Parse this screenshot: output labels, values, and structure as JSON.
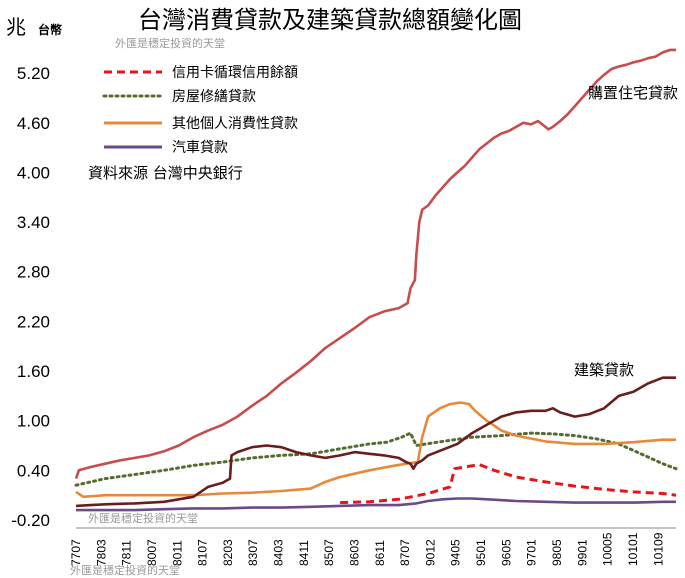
{
  "chart_data": {
    "type": "line",
    "title": "台灣消費貸款及建築貸款總額變化圖",
    "unit_big": "兆",
    "unit_small": "台幣",
    "watermark": "外匯是穩定投資的天堂",
    "source_note": "資料來源 台灣中央銀行",
    "ylim": [
      -0.2,
      5.6
    ],
    "yticks": [
      "5.20",
      "4.60",
      "4.00",
      "3.40",
      "2.80",
      "2.20",
      "1.60",
      "1.00",
      "0.40",
      "-0.20"
    ],
    "ytick_values": [
      5.2,
      4.6,
      4.0,
      3.4,
      2.8,
      2.2,
      1.6,
      1.0,
      0.4,
      -0.2
    ],
    "xlim": [
      0,
      409
    ],
    "xticks": [
      "7707",
      "7803",
      "7811",
      "8007",
      "8011",
      "8107",
      "8203",
      "8307",
      "8403",
      "8411",
      "8507",
      "8603",
      "8611",
      "8707",
      "9012",
      "9405",
      "9501",
      "9605",
      "9701",
      "9805",
      "9901",
      "10005",
      "10101",
      "10109"
    ],
    "annotations": [
      {
        "text": "購置住宅貸款",
        "series": 3
      },
      {
        "text": "建築貸款",
        "series": 4
      }
    ],
    "series": [
      {
        "name": "信用卡循環信用餘額",
        "color": "#e8141a",
        "style": "dashed",
        "points": [
          [
            180,
            0.01
          ],
          [
            200,
            0.02
          ],
          [
            220,
            0.05
          ],
          [
            240,
            0.12
          ],
          [
            255,
            0.2
          ],
          [
            258,
            0.42
          ],
          [
            265,
            0.44
          ],
          [
            275,
            0.47
          ],
          [
            285,
            0.4
          ],
          [
            300,
            0.32
          ],
          [
            320,
            0.26
          ],
          [
            340,
            0.21
          ],
          [
            360,
            0.17
          ],
          [
            380,
            0.14
          ],
          [
            400,
            0.12
          ],
          [
            409,
            0.1
          ]
        ]
      },
      {
        "name": "房屋修繕貸款",
        "color": "#556b2f",
        "style": "dotted",
        "points": [
          [
            0,
            0.22
          ],
          [
            20,
            0.3
          ],
          [
            40,
            0.35
          ],
          [
            60,
            0.4
          ],
          [
            80,
            0.46
          ],
          [
            100,
            0.5
          ],
          [
            120,
            0.55
          ],
          [
            140,
            0.58
          ],
          [
            160,
            0.6
          ],
          [
            180,
            0.66
          ],
          [
            200,
            0.72
          ],
          [
            212,
            0.74
          ],
          [
            222,
            0.8
          ],
          [
            228,
            0.85
          ],
          [
            232,
            0.7
          ],
          [
            250,
            0.75
          ],
          [
            270,
            0.8
          ],
          [
            290,
            0.82
          ],
          [
            310,
            0.85
          ],
          [
            325,
            0.84
          ],
          [
            340,
            0.82
          ],
          [
            355,
            0.78
          ],
          [
            370,
            0.72
          ],
          [
            385,
            0.6
          ],
          [
            400,
            0.48
          ],
          [
            409,
            0.42
          ]
        ]
      },
      {
        "name": "其他個人消費性貸款",
        "color": "#e8893a",
        "style": "solid",
        "points": [
          [
            0,
            0.14
          ],
          [
            5,
            0.08
          ],
          [
            20,
            0.1
          ],
          [
            40,
            0.1
          ],
          [
            60,
            0.1
          ],
          [
            80,
            0.1
          ],
          [
            100,
            0.12
          ],
          [
            120,
            0.13
          ],
          [
            140,
            0.15
          ],
          [
            160,
            0.18
          ],
          [
            170,
            0.26
          ],
          [
            180,
            0.32
          ],
          [
            200,
            0.4
          ],
          [
            215,
            0.45
          ],
          [
            225,
            0.48
          ],
          [
            233,
            0.5
          ],
          [
            236,
            0.8
          ],
          [
            240,
            1.05
          ],
          [
            248,
            1.15
          ],
          [
            255,
            1.2
          ],
          [
            262,
            1.22
          ],
          [
            268,
            1.2
          ],
          [
            272,
            1.12
          ],
          [
            280,
            1.0
          ],
          [
            290,
            0.88
          ],
          [
            300,
            0.82
          ],
          [
            320,
            0.75
          ],
          [
            340,
            0.72
          ],
          [
            360,
            0.72
          ],
          [
            380,
            0.74
          ],
          [
            400,
            0.77
          ],
          [
            409,
            0.77
          ]
        ]
      },
      {
        "name": "購置住宅貸款",
        "color": "#c94c4c",
        "style": "solid",
        "points": [
          [
            0,
            0.3
          ],
          [
            2,
            0.4
          ],
          [
            10,
            0.44
          ],
          [
            20,
            0.48
          ],
          [
            30,
            0.52
          ],
          [
            40,
            0.55
          ],
          [
            50,
            0.58
          ],
          [
            60,
            0.63
          ],
          [
            70,
            0.7
          ],
          [
            80,
            0.8
          ],
          [
            90,
            0.88
          ],
          [
            100,
            0.95
          ],
          [
            110,
            1.05
          ],
          [
            120,
            1.18
          ],
          [
            130,
            1.3
          ],
          [
            140,
            1.45
          ],
          [
            150,
            1.58
          ],
          [
            160,
            1.72
          ],
          [
            170,
            1.88
          ],
          [
            180,
            2.0
          ],
          [
            190,
            2.12
          ],
          [
            200,
            2.25
          ],
          [
            210,
            2.32
          ],
          [
            220,
            2.36
          ],
          [
            226,
            2.42
          ],
          [
            228,
            2.6
          ],
          [
            231,
            2.7
          ],
          [
            232,
            3.0
          ],
          [
            234,
            3.4
          ],
          [
            236,
            3.55
          ],
          [
            240,
            3.6
          ],
          [
            245,
            3.72
          ],
          [
            250,
            3.82
          ],
          [
            255,
            3.92
          ],
          [
            260,
            4.0
          ],
          [
            265,
            4.08
          ],
          [
            270,
            4.18
          ],
          [
            275,
            4.28
          ],
          [
            280,
            4.35
          ],
          [
            285,
            4.42
          ],
          [
            290,
            4.47
          ],
          [
            295,
            4.5
          ],
          [
            300,
            4.55
          ],
          [
            305,
            4.6
          ],
          [
            310,
            4.58
          ],
          [
            315,
            4.62
          ],
          [
            320,
            4.55
          ],
          [
            322,
            4.52
          ],
          [
            325,
            4.55
          ],
          [
            330,
            4.62
          ],
          [
            335,
            4.7
          ],
          [
            340,
            4.8
          ],
          [
            345,
            4.9
          ],
          [
            350,
            5.0
          ],
          [
            355,
            5.1
          ],
          [
            360,
            5.18
          ],
          [
            365,
            5.25
          ],
          [
            370,
            5.28
          ],
          [
            375,
            5.3
          ],
          [
            380,
            5.33
          ],
          [
            385,
            5.35
          ],
          [
            390,
            5.38
          ],
          [
            395,
            5.4
          ],
          [
            400,
            5.45
          ],
          [
            405,
            5.48
          ],
          [
            409,
            5.48
          ]
        ]
      },
      {
        "name": "建築貸款",
        "color": "#6b1d1d",
        "style": "solid",
        "points": [
          [
            0,
            -0.03
          ],
          [
            10,
            -0.02
          ],
          [
            20,
            -0.01
          ],
          [
            40,
            0.0
          ],
          [
            60,
            0.02
          ],
          [
            70,
            0.05
          ],
          [
            80,
            0.08
          ],
          [
            90,
            0.2
          ],
          [
            100,
            0.25
          ],
          [
            105,
            0.3
          ],
          [
            106,
            0.58
          ],
          [
            110,
            0.62
          ],
          [
            120,
            0.68
          ],
          [
            130,
            0.7
          ],
          [
            140,
            0.68
          ],
          [
            150,
            0.62
          ],
          [
            160,
            0.58
          ],
          [
            170,
            0.55
          ],
          [
            180,
            0.58
          ],
          [
            190,
            0.62
          ],
          [
            200,
            0.6
          ],
          [
            210,
            0.58
          ],
          [
            220,
            0.55
          ],
          [
            225,
            0.5
          ],
          [
            228,
            0.48
          ],
          [
            230,
            0.42
          ],
          [
            232,
            0.48
          ],
          [
            236,
            0.52
          ],
          [
            240,
            0.58
          ],
          [
            250,
            0.65
          ],
          [
            260,
            0.72
          ],
          [
            270,
            0.85
          ],
          [
            280,
            0.95
          ],
          [
            290,
            1.05
          ],
          [
            300,
            1.1
          ],
          [
            310,
            1.12
          ],
          [
            320,
            1.12
          ],
          [
            325,
            1.15
          ],
          [
            330,
            1.1
          ],
          [
            340,
            1.05
          ],
          [
            350,
            1.08
          ],
          [
            360,
            1.15
          ],
          [
            370,
            1.3
          ],
          [
            380,
            1.35
          ],
          [
            390,
            1.45
          ],
          [
            400,
            1.52
          ],
          [
            409,
            1.52
          ]
        ]
      },
      {
        "name": "汽車貸款",
        "color": "#6b4a8a",
        "style": "solid",
        "points": [
          [
            0,
            -0.08
          ],
          [
            20,
            -0.08
          ],
          [
            40,
            -0.08
          ],
          [
            60,
            -0.07
          ],
          [
            80,
            -0.06
          ],
          [
            100,
            -0.06
          ],
          [
            120,
            -0.05
          ],
          [
            140,
            -0.05
          ],
          [
            160,
            -0.04
          ],
          [
            180,
            -0.03
          ],
          [
            200,
            -0.02
          ],
          [
            220,
            -0.02
          ],
          [
            232,
            0.0
          ],
          [
            240,
            0.03
          ],
          [
            250,
            0.05
          ],
          [
            260,
            0.06
          ],
          [
            270,
            0.06
          ],
          [
            280,
            0.05
          ],
          [
            300,
            0.03
          ],
          [
            320,
            0.02
          ],
          [
            340,
            0.01
          ],
          [
            360,
            0.01
          ],
          [
            380,
            0.01
          ],
          [
            400,
            0.02
          ],
          [
            409,
            0.02
          ]
        ]
      }
    ]
  }
}
